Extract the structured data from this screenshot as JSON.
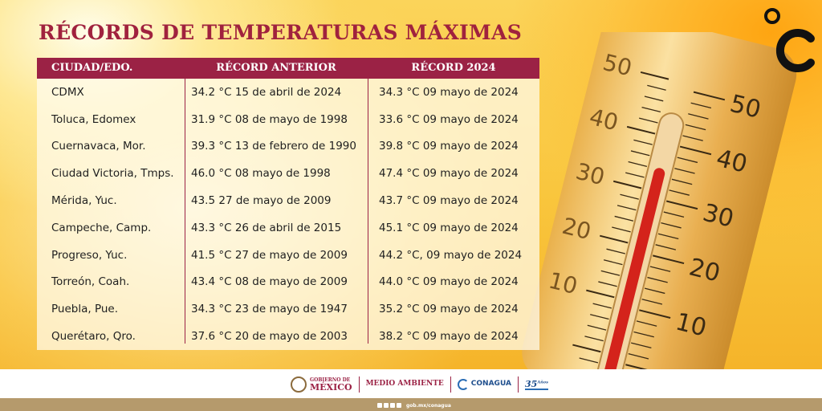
{
  "title": "RÉCORDS DE TEMPERATURAS MÁXIMAS",
  "unit_symbol": "°C",
  "table": {
    "headers": [
      "CIUDAD/EDO.",
      "RÉCORD ANTERIOR",
      "RÉCORD 2024"
    ],
    "rows": [
      [
        "CDMX",
        "34.2 °C 15 de abril de 2024",
        "34.3 °C 09 mayo de 2024"
      ],
      [
        "Toluca, Edomex",
        "31.9 °C 08 de mayo de 1998",
        "33.6 °C 09 mayo de 2024"
      ],
      [
        "Cuernavaca, Mor.",
        "39.3 °C 13 de febrero de 1990",
        "39.8 °C 09 mayo de 2024"
      ],
      [
        "Ciudad Victoria, Tmps.",
        "46.0 °C 08 mayo de 1998",
        "47.4 °C 09 mayo de 2024"
      ],
      [
        "Mérida, Yuc.",
        "43.5 27 de mayo de 2009",
        "43.7 °C 09 mayo de 2024"
      ],
      [
        "Campeche, Camp.",
        "43.3 °C 26 de abril de 2015",
        "45.1 °C 09 mayo de 2024"
      ],
      [
        "Progreso, Yuc.",
        "41.5 °C 27 de mayo de 2009",
        "44.2 °C, 09 mayo de 2024"
      ],
      [
        "Torreón, Coah.",
        "43.4 °C 08 de mayo de 2009",
        "44.0 °C 09 mayo de 2024"
      ],
      [
        "Puebla, Pue.",
        "34.3 °C 23 de mayo de 1947",
        "35.2 °C 09 mayo de 2024"
      ],
      [
        "Querétaro, Qro.",
        "37.6 °C 20 de mayo de 2003",
        "38.2 °C 09 mayo de 2024"
      ]
    ]
  },
  "thermometer": {
    "left_scale": [
      "50",
      "40",
      "30",
      "20",
      "10"
    ],
    "right_scale": [
      "50",
      "40",
      "30",
      "20",
      "10"
    ]
  },
  "footer": {
    "gob_small": "GOBIERNO DE",
    "gob_big": "MÉXICO",
    "medio_ambiente": "MEDIO AMBIENTE",
    "conagua": "CONAGUA",
    "aniversario": "35",
    "aniversario_sup": "Años",
    "url": "gob.mx/conagua"
  },
  "colors": {
    "accent": "#9b2245",
    "background": "#f7c23a",
    "footer_band": "#b59a6c"
  }
}
